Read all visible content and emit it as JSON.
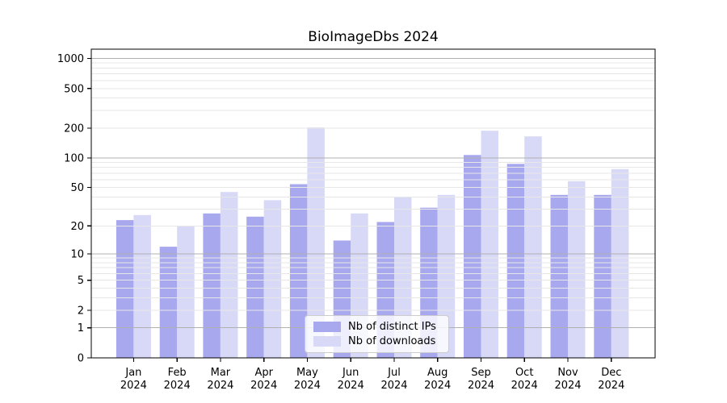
{
  "chart_data": {
    "type": "bar",
    "title": "BioImageDbs 2024",
    "categories": [
      "Jan 2024",
      "Feb 2024",
      "Mar 2024",
      "Apr 2024",
      "May 2024",
      "Jun 2024",
      "Jul 2024",
      "Aug 2024",
      "Sep 2024",
      "Oct 2024",
      "Nov 2024",
      "Dec 2024"
    ],
    "series": [
      {
        "name": "Nb of distinct IPs",
        "color": "#a8a8ee",
        "values": [
          23,
          12,
          27,
          25,
          54,
          14,
          22,
          31,
          107,
          87,
          42,
          42
        ]
      },
      {
        "name": "Nb of downloads",
        "color": "#d8d8f7",
        "values": [
          26,
          20,
          45,
          37,
          203,
          27,
          40,
          42,
          188,
          165,
          58,
          77
        ]
      }
    ],
    "xlabel": "",
    "ylabel": "",
    "yscale": "log1p",
    "ylim": [
      0,
      1240
    ],
    "y_ticks": [
      0,
      1,
      2,
      5,
      10,
      20,
      50,
      100,
      200,
      500,
      1000
    ],
    "y_tick_labels": [
      "0",
      "1",
      "2",
      "5",
      "10",
      "20",
      "50",
      "100",
      "200",
      "500",
      "1000"
    ],
    "grid": true,
    "legend_position": "lower center"
  },
  "colors": {
    "background": "#ffffff",
    "grid_major": "#b0b0b0",
    "grid_minor": "#e7e7e7",
    "spine": "#000000",
    "tick": "#000000",
    "legend_border": "#cccccc",
    "legend_background": "rgba(255,255,255,0.8)"
  }
}
